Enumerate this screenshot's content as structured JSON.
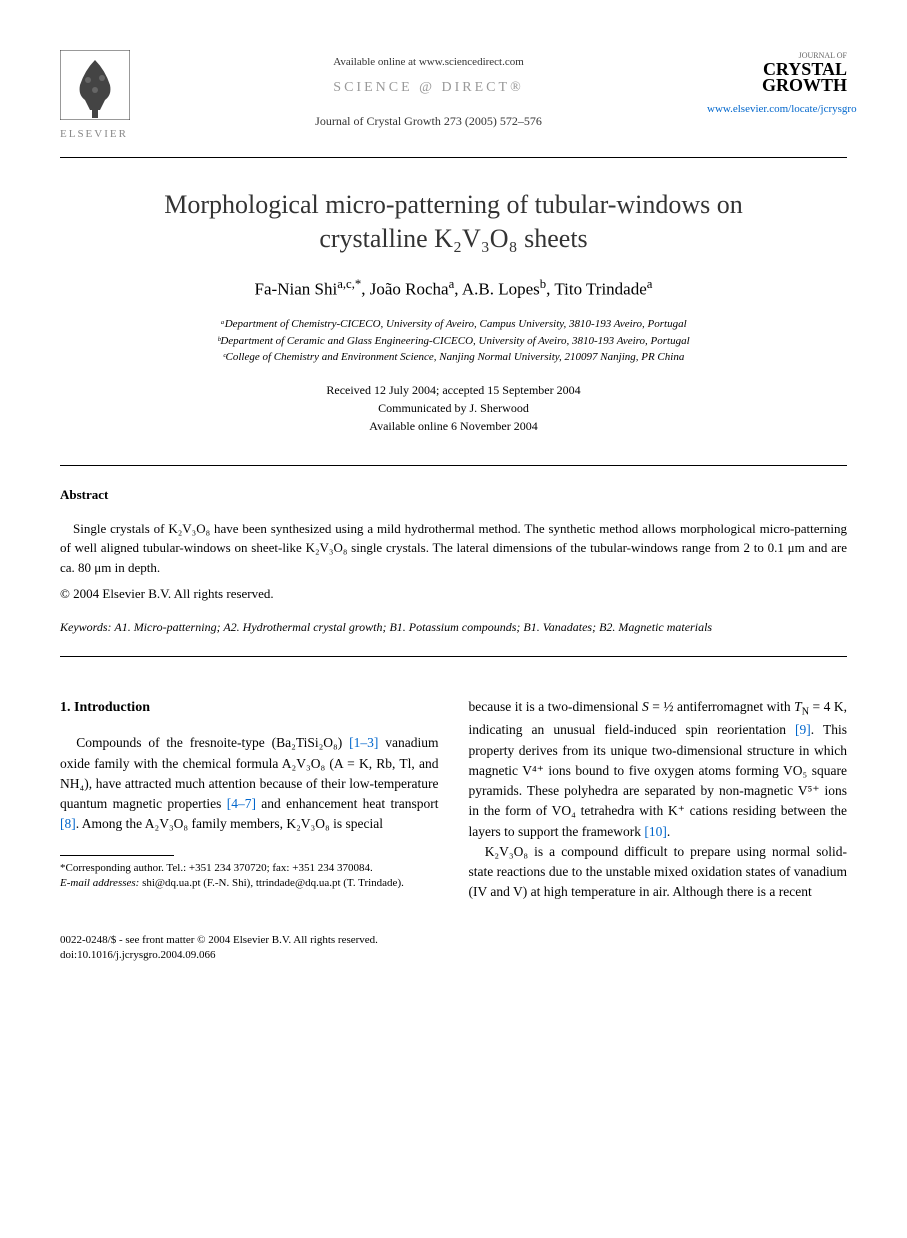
{
  "header": {
    "available_online": "Available online at www.sciencedirect.com",
    "sciencedirect": "SCIENCE @ DIRECT®",
    "journal_ref": "Journal of Crystal Growth 273 (2005) 572–576",
    "elsevier_name": "ELSEVIER",
    "journal_label": "JOURNAL OF",
    "journal_name_1": "CRYSTAL",
    "journal_name_2": "GROWTH",
    "elsevier_url": "www.elsevier.com/locate/jcrysgro"
  },
  "title_line1": "Morphological micro-patterning of tubular-windows on",
  "title_line2": "crystalline K₂V₃O₈ sheets",
  "authors_html": "Fa-Nian Shi<sup>a,c,*</sup>, João Rocha<sup>a</sup>, A.B. Lopes<sup>b</sup>, Tito Trindade<sup>a</sup>",
  "affiliations": {
    "a": "ᵃDepartment of Chemistry-CICECO, University of Aveiro, Campus University, 3810-193 Aveiro, Portugal",
    "b": "ᵇDepartment of Ceramic and Glass Engineering-CICECO, University of Aveiro, 3810-193 Aveiro, Portugal",
    "c": "ᶜCollege of Chemistry and Environment Science, Nanjing Normal University, 210097 Nanjing, PR China"
  },
  "dates": {
    "received": "Received 12 July 2004; accepted 15 September 2004",
    "communicated": "Communicated by J. Sherwood",
    "online": "Available online 6 November 2004"
  },
  "abstract": {
    "label": "Abstract",
    "text": "Single crystals of K₂V₃O₈ have been synthesized using a mild hydrothermal method. The synthetic method allows morphological micro-patterning of well aligned tubular-windows on sheet-like K₂V₃O₈ single crystals. The lateral dimensions of the tubular-windows range from 2 to 0.1 μm and are ca. 80 μm in depth.",
    "copyright": "© 2004 Elsevier B.V. All rights reserved."
  },
  "keywords": {
    "label": "Keywords:",
    "text": "A1. Micro-patterning; A2. Hydrothermal crystal growth; B1. Potassium compounds; B1. Vanadates; B2. Magnetic materials"
  },
  "intro": {
    "heading": "1. Introduction",
    "col1_html": "Compounds of the fresnoite-type (Ba₂TiSi₂O₈) <span class=\"ref-link\">[1–3]</span> vanadium oxide family with the chemical formula A₂V₃O₈ (A = K, Rb, Tl, and NH₄), have attracted much attention because of their low-temperature quantum magnetic properties <span class=\"ref-link\">[4–7]</span> and enhancement heat transport <span class=\"ref-link\">[8]</span>. Among the A₂V₃O₈ family members, K₂V₃O₈ is special",
    "col2_html": "because it is a two-dimensional <i>S</i> = ½ antiferromagnet with <i>T</i><sub>N</sub> = 4 K, indicating an unusual field-induced spin reorientation <span class=\"ref-link\">[9]</span>. This property derives from its unique two-dimensional structure in which magnetic V⁴⁺ ions bound to five oxygen atoms forming VO₅ square pyramids. These polyhedra are separated by non-magnetic V⁵⁺ ions in the form of VO₄ tetrahedra with K⁺ cations residing between the layers to support the framework <span class=\"ref-link\">[10]</span>.",
    "col2_para2_html": "K₂V₃O₈ is a compound difficult to prepare using normal solid-state reactions due to the unstable mixed oxidation states of vanadium (IV and V) at high temperature in air. Although there is a recent"
  },
  "footnote": {
    "corresponding": "*Corresponding author. Tel.: +351 234 370720; fax: +351 234 370084.",
    "email_label": "E-mail addresses:",
    "emails": "shi@dq.ua.pt (F.-N. Shi), ttrindade@dq.ua.pt (T. Trindade)."
  },
  "footer": {
    "front_matter": "0022-0248/$ - see front matter © 2004 Elsevier B.V. All rights reserved.",
    "doi": "doi:10.1016/j.jcrysgro.2004.09.066"
  },
  "colors": {
    "link": "#0066cc",
    "text": "#000000",
    "background": "#ffffff",
    "muted": "#888888"
  }
}
